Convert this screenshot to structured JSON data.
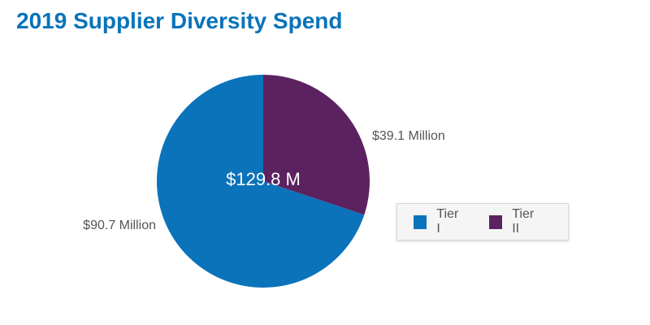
{
  "chart_data": {
    "type": "pie",
    "title": "2019 Supplier Diversity Spend",
    "center_label": "$129.8 M",
    "slices": [
      {
        "name": "Tier II",
        "value": 39.1,
        "label": "$39.1 Million",
        "color": "#5c2260"
      },
      {
        "name": "Tier I",
        "value": 90.7,
        "label": "$90.7 Million",
        "color": "#0a73ba"
      }
    ],
    "legend": {
      "placement": "right",
      "items": [
        {
          "label": "Tier I",
          "color": "#0a73ba"
        },
        {
          "label": "Tier II",
          "color": "#5c2260"
        }
      ]
    }
  }
}
